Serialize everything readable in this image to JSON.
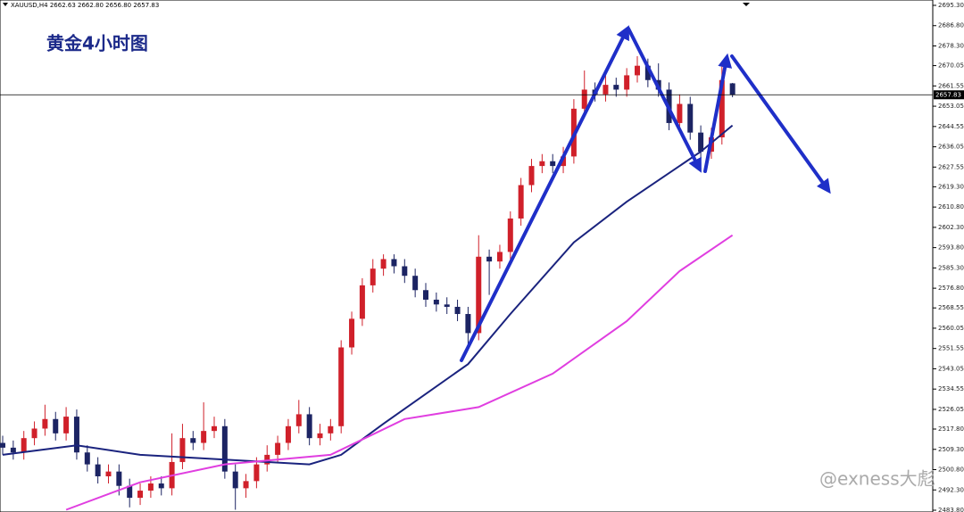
{
  "header": "XAUUSD,H4  2662.63 2662.80 2656.80 2657.83",
  "watermark": "@exness大彪",
  "chart_data": {
    "type": "candlestick",
    "title": "黄金4小时图",
    "up_color": "#d0202a",
    "down_color": "#1c2463",
    "open": [
      2512,
      2510,
      2508,
      2514,
      2518,
      2522,
      2516,
      2523,
      2508,
      2503,
      2498,
      2500,
      2494,
      2489,
      2492,
      2495,
      2493,
      2504,
      2514,
      2512,
      2517,
      2519,
      2500,
      2493,
      2496,
      2503,
      2507,
      2512,
      2519,
      2524,
      2514,
      2516,
      2519,
      2552,
      2564,
      2578,
      2585,
      2589,
      2586,
      2582,
      2576,
      2572,
      2570,
      2569,
      2566,
      2558,
      2590,
      2588,
      2592,
      2606,
      2620,
      2628,
      2630,
      2628,
      2632,
      2652,
      2660,
      2658,
      2662,
      2660,
      2666,
      2670,
      2664,
      2660,
      2646,
      2654,
      2642,
      2634,
      2640,
      2662.63
    ],
    "high": [
      2515,
      2513,
      2517,
      2521,
      2528,
      2525,
      2527,
      2526,
      2511,
      2506,
      2503,
      2503,
      2497,
      2495,
      2498,
      2498,
      2516,
      2520,
      2517,
      2529,
      2523,
      2522,
      2503,
      2499,
      2506,
      2511,
      2515,
      2522,
      2530,
      2527,
      2520,
      2522,
      2555,
      2567,
      2581,
      2589,
      2591,
      2591,
      2589,
      2585,
      2579,
      2575,
      2573,
      2572,
      2569,
      2599,
      2593,
      2595,
      2609,
      2623,
      2631,
      2633,
      2633,
      2636,
      2656,
      2668,
      2663,
      2666,
      2665,
      2669,
      2674,
      2673,
      2671,
      2663,
      2658,
      2657,
      2645,
      2644,
      2670,
      2662.8
    ],
    "low": [
      2507,
      2505,
      2505,
      2511,
      2515,
      2513,
      2513,
      2505,
      2500,
      2495,
      2495,
      2490,
      2485,
      2486,
      2489,
      2490,
      2490,
      2501,
      2509,
      2509,
      2514,
      2497,
      2484,
      2489,
      2493,
      2500,
      2504,
      2509,
      2516,
      2511,
      2511,
      2513,
      2516,
      2549,
      2561,
      2575,
      2582,
      2583,
      2579,
      2573,
      2569,
      2567,
      2566,
      2563,
      2552,
      2555,
      2574,
      2585,
      2589,
      2603,
      2617,
      2625,
      2625,
      2625,
      2629,
      2649,
      2655,
      2655,
      2657,
      2657,
      2663,
      2661,
      2657,
      2643,
      2643,
      2639,
      2631,
      2631,
      2637,
      2656.8
    ],
    "close": [
      2510,
      2508,
      2514,
      2518,
      2522,
      2516,
      2523,
      2508,
      2503,
      2498,
      2500,
      2494,
      2489,
      2492,
      2495,
      2493,
      2504,
      2514,
      2512,
      2517,
      2519,
      2500,
      2493,
      2496,
      2503,
      2507,
      2512,
      2519,
      2524,
      2514,
      2516,
      2519,
      2552,
      2564,
      2578,
      2585,
      2589,
      2586,
      2582,
      2576,
      2572,
      2570,
      2569,
      2566,
      2558,
      2590,
      2588,
      2592,
      2606,
      2620,
      2628,
      2630,
      2628,
      2632,
      2652,
      2660,
      2658,
      2662,
      2660,
      2666,
      2670,
      2664,
      2660,
      2646,
      2654,
      2642,
      2634,
      2640,
      2664,
      2657.83
    ],
    "series": [
      {
        "color": "#1a237e",
        "x": [
          0,
          7,
          13,
          21,
          29,
          32,
          36,
          44,
          48,
          54,
          59,
          66,
          69
        ],
        "values": [
          2507,
          2511,
          2507,
          2505,
          2503,
          2507,
          2520,
          2545,
          2566,
          2596,
          2613,
          2634,
          2645
        ]
      },
      {
        "color": "#e03ee0",
        "x": [
          6,
          13,
          21,
          31,
          38,
          45,
          52,
          59,
          64,
          69
        ],
        "values": [
          2484,
          2495.5,
          2503,
          2507,
          2522,
          2527,
          2541,
          2563,
          2584,
          2599
        ]
      }
    ],
    "price_line": 2657.83,
    "ylim": [
      2483.8,
      2695.3
    ],
    "yticks": [
      {
        "value": 2695.3,
        "label": "2695.30"
      },
      {
        "value": 2686.8,
        "label": "2686.80"
      },
      {
        "value": 2678.3,
        "label": "2678.30"
      },
      2670.05,
      2661.55,
      2653.05,
      2644.55,
      2636.05,
      2627.55,
      {
        "value": 2619.3,
        "label": "2619.30"
      },
      {
        "value": 2610.8,
        "label": "2610.80"
      },
      {
        "value": 2602.3,
        "label": "2602.30"
      },
      {
        "value": 2593.8,
        "label": "2593.80"
      },
      {
        "value": 2585.3,
        "label": "2585.30"
      },
      {
        "value": 2576.8,
        "label": "2576.80"
      },
      2568.55,
      2560.05,
      2551.55,
      2543.05,
      2534.55,
      2526.05,
      {
        "value": 2517.8,
        "label": "2517.80"
      },
      {
        "value": 2509.3,
        "label": "2509.30"
      },
      {
        "value": 2500.8,
        "label": "2500.80"
      },
      {
        "value": 2492.3,
        "label": "2492.30"
      },
      {
        "value": 2483.8,
        "label": "2483.80"
      }
    ],
    "grid": false
  }
}
